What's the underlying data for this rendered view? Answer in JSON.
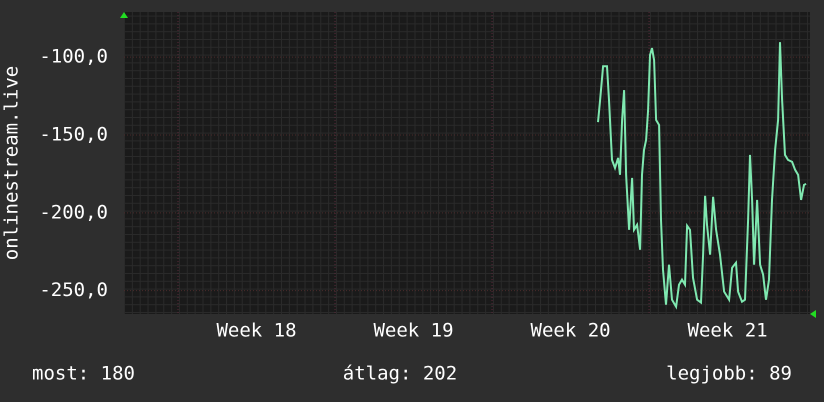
{
  "chart_data": {
    "type": "line",
    "y_label": "onlinestream.live",
    "ylim": [
      -265,
      -71
    ],
    "yticks": [
      {
        "value": -100,
        "label": "-100,0"
      },
      {
        "value": -150,
        "label": "-150,0"
      },
      {
        "value": -200,
        "label": "-200,0"
      },
      {
        "value": -250,
        "label": "-250,0"
      }
    ],
    "xlim": [
      17.656,
      22.025
    ],
    "xticks": [
      {
        "value": 18.5,
        "label": "Week 18"
      },
      {
        "value": 19.5,
        "label": "Week 19"
      },
      {
        "value": 20.5,
        "label": "Week 20"
      },
      {
        "value": 21.5,
        "label": "Week 21"
      }
    ],
    "week_lines": [
      18,
      19,
      20,
      21
    ],
    "grid": true,
    "series": [
      {
        "color": "#7fe8b0",
        "x": [
          20.675,
          20.688,
          20.707,
          20.732,
          20.745,
          20.764,
          20.783,
          20.803,
          20.815,
          20.828,
          20.841,
          20.854,
          20.873,
          20.892,
          20.904,
          20.924,
          20.943,
          20.955,
          20.968,
          20.981,
          20.994,
          21.006,
          21.019,
          21.032,
          21.045,
          21.064,
          21.076,
          21.089,
          21.108,
          21.127,
          21.146,
          21.172,
          21.191,
          21.21,
          21.229,
          21.242,
          21.261,
          21.28,
          21.306,
          21.331,
          21.344,
          21.357,
          21.369,
          21.389,
          21.408,
          21.427,
          21.452,
          21.478,
          21.51,
          21.529,
          21.554,
          21.567,
          21.592,
          21.611,
          21.631,
          21.643,
          21.656,
          21.669,
          21.688,
          21.707,
          21.726,
          21.745,
          21.764,
          21.783,
          21.803,
          21.822,
          21.834,
          21.847,
          21.866,
          21.885,
          21.911,
          21.93,
          21.949,
          21.968,
          21.987,
          22.0
        ],
        "values": [
          -141.7,
          -127.6,
          -105.8,
          -105.8,
          -127.6,
          -166.0,
          -171.2,
          -164.7,
          -175.6,
          -140.4,
          -121.2,
          -175.6,
          -210.9,
          -177.6,
          -210.9,
          -207.7,
          -223.7,
          -175.6,
          -159.6,
          -153.2,
          -134.0,
          -98.7,
          -94.2,
          -101.9,
          -140.4,
          -143.6,
          -204.5,
          -236.5,
          -259.0,
          -233.3,
          -255.8,
          -260.3,
          -246.2,
          -242.9,
          -246.2,
          -208.3,
          -210.9,
          -241.7,
          -255.8,
          -257.7,
          -226.9,
          -189.1,
          -207.7,
          -226.9,
          -189.7,
          -210.9,
          -226.9,
          -250.6,
          -255.8,
          -235.3,
          -232.1,
          -250.6,
          -257.1,
          -255.8,
          -204.5,
          -162.8,
          -191.7,
          -233.3,
          -191.7,
          -233.3,
          -239.7,
          -255.8,
          -242.9,
          -191.7,
          -159.6,
          -140.4,
          -90.4,
          -127.6,
          -162.8,
          -166.0,
          -167.3,
          -172.4,
          -175.6,
          -191.7,
          -182.1,
          -181.4
        ]
      }
    ]
  },
  "footer": {
    "current": "most: 180",
    "average": "átlag: 202",
    "best": "legjobb: 89"
  }
}
